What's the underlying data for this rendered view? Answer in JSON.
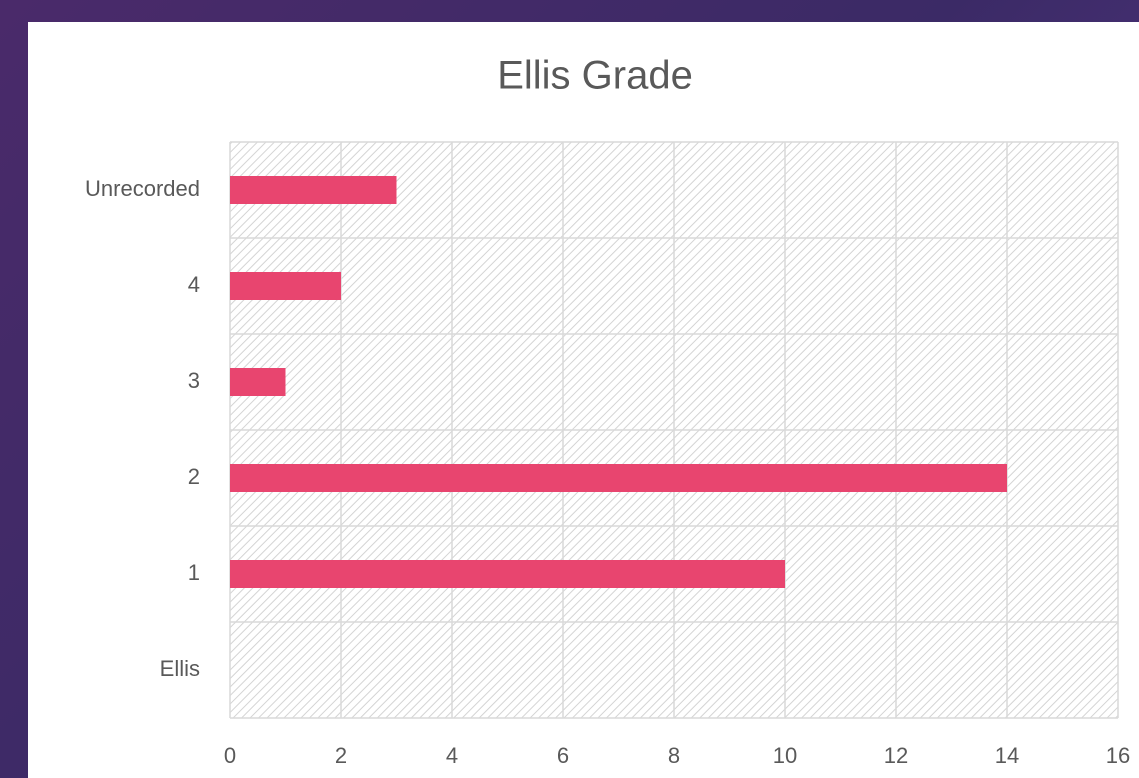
{
  "chart_data": {
    "type": "bar",
    "orientation": "horizontal",
    "title": "Ellis Grade",
    "categories": [
      "Ellis",
      "1",
      "2",
      "3",
      "4",
      "Unrecorded"
    ],
    "values": [
      0,
      10,
      14,
      1,
      2,
      3
    ],
    "color": "#e8456f",
    "xlim": [
      0,
      16
    ],
    "xticks": [
      0,
      2,
      4,
      6,
      8,
      10,
      12,
      14,
      16
    ],
    "grid": true
  }
}
